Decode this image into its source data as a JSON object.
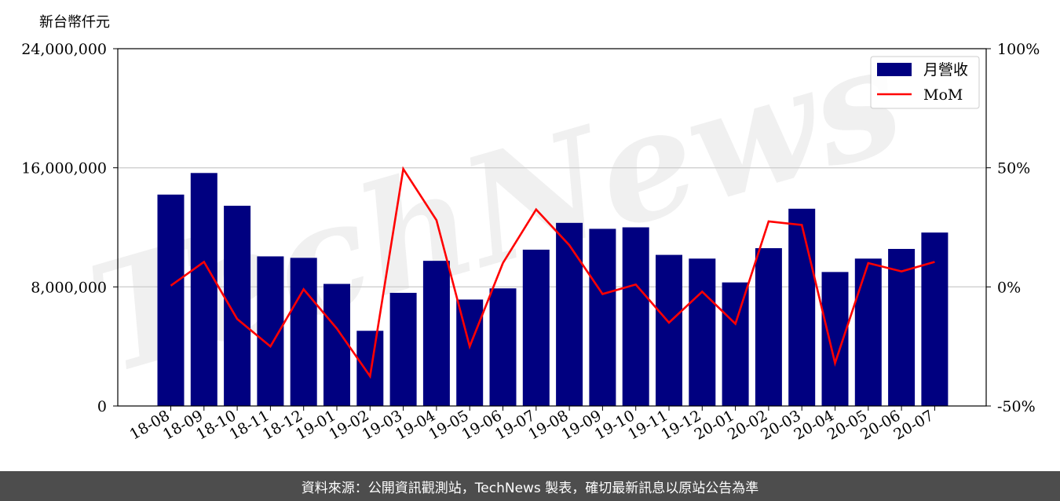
{
  "chart_data": {
    "type": "bar",
    "ylabel": "新台幣仟元",
    "categories": [
      "18-08",
      "18-09",
      "18-10",
      "18-11",
      "18-12",
      "19-01",
      "19-02",
      "19-03",
      "19-04",
      "19-05",
      "19-06",
      "19-07",
      "19-08",
      "19-09",
      "19-10",
      "19-11",
      "19-12",
      "20-01",
      "20-02",
      "20-03",
      "20-04",
      "20-05",
      "20-06",
      "20-07"
    ],
    "series": [
      {
        "name": "月營收",
        "type": "bar",
        "axis": "left",
        "color": "#000080",
        "values": [
          14200000,
          15650000,
          13450000,
          10050000,
          9950000,
          8200000,
          5050000,
          7600000,
          9750000,
          7150000,
          7900000,
          10500000,
          12300000,
          11900000,
          12000000,
          10150000,
          9900000,
          8300000,
          10600000,
          13250000,
          9000000,
          9900000,
          10550000,
          11650000
        ]
      },
      {
        "name": "MoM",
        "type": "line",
        "axis": "right",
        "color": "#ff0000",
        "values": [
          0.5,
          10.5,
          -13.5,
          -25,
          -1,
          -17.5,
          -37.5,
          49.5,
          28,
          -25,
          10,
          32.5,
          17.5,
          -3,
          1,
          -15,
          -2,
          -15.5,
          27.5,
          26,
          -32,
          10,
          6.5,
          10.5
        ]
      }
    ],
    "ylim": [
      0,
      24000000
    ],
    "yticks": [
      0,
      8000000,
      16000000,
      24000000
    ],
    "ytick_labels": [
      "0",
      "8,000,000",
      "16,000,000",
      "24,000,000"
    ],
    "y2lim": [
      -50,
      100
    ],
    "y2ticks": [
      -50,
      0,
      50,
      100
    ],
    "y2tick_labels": [
      "-50%",
      "0%",
      "50%",
      "100%"
    ],
    "grid": "horizontal",
    "legend_position": "top-right"
  },
  "watermark": "TechNews",
  "footer": "資料來源：公開資訊觀測站，TechNews 製表，確切最新訊息以原站公告為準"
}
